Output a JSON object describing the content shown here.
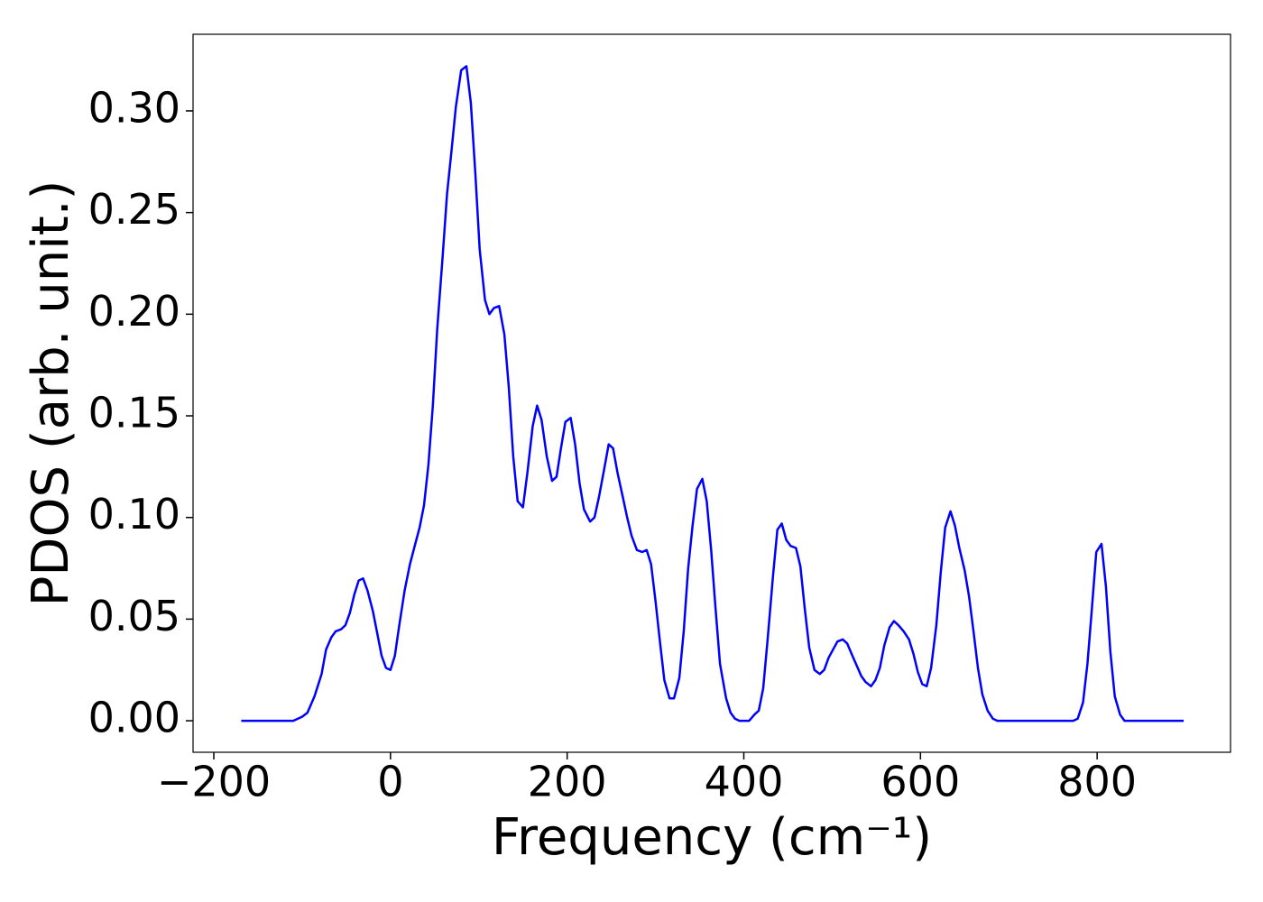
{
  "chart_data": {
    "type": "line",
    "xlabel": "Frequency (cm⁻¹)",
    "ylabel": "PDOS (arb. unit.)",
    "xlim": [
      -223.5,
      951
    ],
    "ylim": [
      -0.0155,
      0.3377
    ],
    "xticks": [
      {
        "value": -200,
        "label": "−200"
      },
      0,
      200,
      400,
      600,
      800
    ],
    "yticks": [
      {
        "value": 0,
        "label": "0.00"
      },
      {
        "value": 0.05,
        "label": "0.05"
      },
      {
        "value": 0.1,
        "label": "0.10"
      },
      {
        "value": 0.15,
        "label": "0.15"
      },
      {
        "value": 0.2,
        "label": "0.20"
      },
      {
        "value": 0.25,
        "label": "0.25"
      },
      {
        "value": 0.3,
        "label": "0.30"
      }
    ],
    "grid": false,
    "series": [
      {
        "color": "#0000ff",
        "x": [
          -169,
          -110,
          -100,
          -94,
          -86,
          -78,
          -73,
          -67,
          -62,
          -56,
          -51,
          -46,
          -41,
          -36,
          -31,
          -26,
          -20,
          -15,
          -10,
          -5,
          0,
          5,
          10,
          16,
          22,
          28,
          33,
          38,
          43,
          48,
          53,
          59,
          64,
          69,
          74,
          80,
          86,
          91,
          96,
          101,
          107,
          112,
          117,
          123,
          129,
          134,
          139,
          144,
          150,
          155,
          161,
          166,
          171,
          177,
          183,
          188,
          193,
          198,
          204,
          209,
          214,
          219,
          226,
          231,
          236,
          242,
          247,
          252,
          257,
          263,
          268,
          273,
          279,
          285,
          290,
          295,
          300,
          305,
          310,
          316,
          321,
          327,
          332,
          337,
          342,
          347,
          353,
          358,
          363,
          368,
          373,
          380,
          385,
          390,
          395,
          406,
          412,
          417,
          422,
          427,
          433,
          438,
          443,
          448,
          453,
          459,
          464,
          469,
          474,
          480,
          486,
          491,
          496,
          501,
          506,
          512,
          517,
          522,
          528,
          533,
          538,
          544,
          549,
          554,
          559,
          565,
          570,
          575,
          581,
          587,
          592,
          597,
          602,
          607,
          612,
          618,
          623,
          628,
          634,
          639,
          644,
          650,
          655,
          660,
          665,
          670,
          676,
          682,
          687,
          773,
          778,
          784,
          789,
          794,
          799,
          805,
          810,
          815,
          820,
          826,
          831,
          898
        ],
        "values": [
          0,
          0,
          0.002,
          0.004,
          0.012,
          0.023,
          0.035,
          0.041,
          0.044,
          0.045,
          0.047,
          0.053,
          0.062,
          0.069,
          0.07,
          0.064,
          0.054,
          0.043,
          0.032,
          0.026,
          0.025,
          0.032,
          0.047,
          0.064,
          0.077,
          0.087,
          0.095,
          0.106,
          0.126,
          0.155,
          0.193,
          0.228,
          0.259,
          0.28,
          0.302,
          0.32,
          0.322,
          0.304,
          0.27,
          0.232,
          0.207,
          0.2,
          0.203,
          0.204,
          0.19,
          0.164,
          0.13,
          0.108,
          0.105,
          0.122,
          0.145,
          0.155,
          0.148,
          0.13,
          0.118,
          0.12,
          0.134,
          0.147,
          0.149,
          0.136,
          0.117,
          0.104,
          0.098,
          0.1,
          0.11,
          0.124,
          0.136,
          0.134,
          0.122,
          0.11,
          0.1,
          0.091,
          0.084,
          0.083,
          0.084,
          0.077,
          0.059,
          0.039,
          0.02,
          0.011,
          0.011,
          0.021,
          0.044,
          0.075,
          0.096,
          0.114,
          0.119,
          0.108,
          0.084,
          0.055,
          0.028,
          0.011,
          0.004,
          0.001,
          0,
          0,
          0.003,
          0.005,
          0.016,
          0.04,
          0.071,
          0.094,
          0.097,
          0.089,
          0.086,
          0.085,
          0.076,
          0.055,
          0.036,
          0.025,
          0.023,
          0.025,
          0.031,
          0.035,
          0.039,
          0.04,
          0.038,
          0.033,
          0.027,
          0.022,
          0.019,
          0.017,
          0.02,
          0.026,
          0.037,
          0.046,
          0.049,
          0.047,
          0.044,
          0.04,
          0.033,
          0.024,
          0.018,
          0.017,
          0.026,
          0.047,
          0.073,
          0.095,
          0.103,
          0.096,
          0.085,
          0.074,
          0.061,
          0.044,
          0.026,
          0.013,
          0.005,
          0.001,
          0,
          0,
          0.001,
          0.009,
          0.028,
          0.055,
          0.083,
          0.087,
          0.066,
          0.034,
          0.012,
          0.003,
          0,
          0
        ]
      }
    ]
  }
}
